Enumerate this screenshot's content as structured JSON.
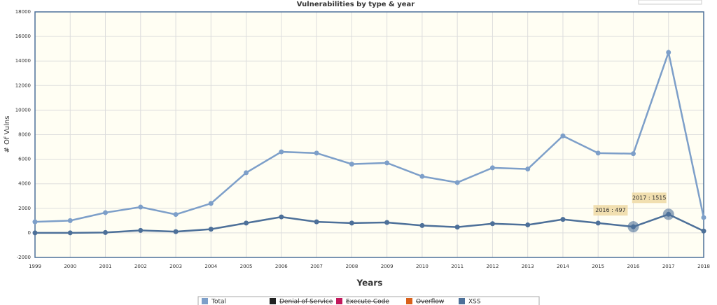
{
  "chart_data": {
    "type": "line",
    "title": "Vulnerabilities by type & year",
    "x_label": "Years",
    "y_label": "# Of Vulns",
    "categories": [
      "1999",
      "2000",
      "2001",
      "2002",
      "2003",
      "2004",
      "2005",
      "2006",
      "2007",
      "2008",
      "2009",
      "2010",
      "2011",
      "2012",
      "2013",
      "2014",
      "2015",
      "2016",
      "2017",
      "2018"
    ],
    "series": [
      {
        "name": "Total",
        "color": "#7d9fc9",
        "values": [
          900,
          1000,
          1650,
          2100,
          1500,
          2400,
          4900,
          6600,
          6500,
          5600,
          5700,
          4600,
          4100,
          5300,
          5200,
          7900,
          6500,
          6450,
          14700,
          1250
        ]
      },
      {
        "name": "XSS",
        "color": "#4d7099",
        "values": [
          2,
          4,
          30,
          200,
          100,
          300,
          800,
          1300,
          900,
          800,
          850,
          600,
          470,
          750,
          650,
          1100,
          800,
          497,
          1515,
          150
        ]
      }
    ],
    "hidden_series": [
      {
        "name": "Denial of Service",
        "color": "#222222"
      },
      {
        "name": "Execute Code",
        "color": "#c2185b"
      },
      {
        "name": "Overflow",
        "color": "#d9601a"
      }
    ],
    "annotations": [
      "2016 : 497",
      "2017 : 1515"
    ],
    "ylim": [
      -2000,
      18000
    ],
    "yticks": [
      -2000,
      0,
      2000,
      4000,
      6000,
      8000,
      10000,
      12000,
      14000,
      16000,
      18000
    ],
    "grid": true
  }
}
